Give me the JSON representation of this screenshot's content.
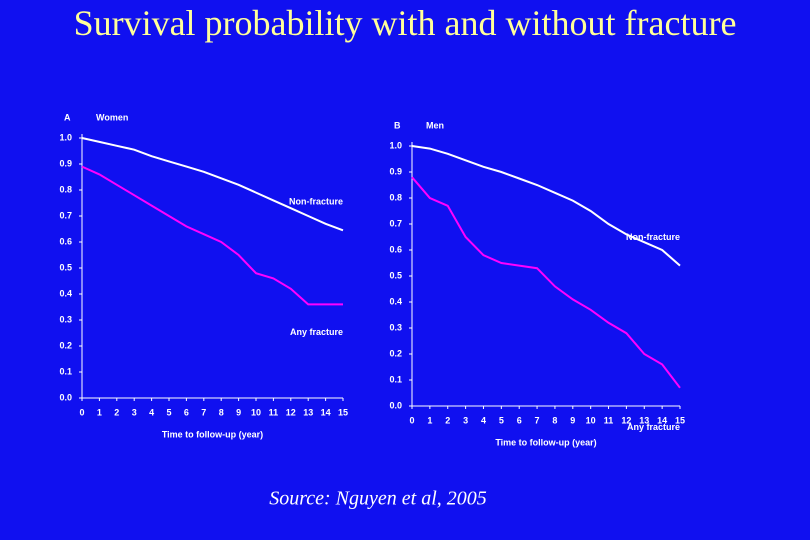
{
  "title": "Survival probability with and without fracture",
  "source": "Source: Nguyen et al, 2005",
  "chart_data": [
    {
      "type": "line",
      "panel": "A",
      "title": "Women",
      "xlabel": "Time to follow-up (year)",
      "x": [
        0,
        1,
        2,
        3,
        4,
        5,
        6,
        7,
        8,
        9,
        10,
        11,
        12,
        13,
        14,
        15
      ],
      "series": [
        {
          "name": "Non-fracture",
          "color": "#ffffff",
          "values": [
            1.0,
            0.985,
            0.97,
            0.955,
            0.93,
            0.91,
            0.89,
            0.87,
            0.845,
            0.82,
            0.79,
            0.76,
            0.73,
            0.7,
            0.67,
            0.645
          ]
        },
        {
          "name": "Any fracture",
          "color": "#ff00ff",
          "values": [
            0.89,
            0.86,
            0.82,
            0.78,
            0.74,
            0.7,
            0.66,
            0.63,
            0.6,
            0.55,
            0.48,
            0.46,
            0.42,
            0.36,
            0.36,
            0.36
          ]
        }
      ],
      "xlim": [
        0,
        15
      ],
      "xticks": [
        0,
        1,
        2,
        3,
        4,
        5,
        6,
        7,
        8,
        9,
        10,
        11,
        12,
        13,
        14,
        15
      ],
      "ylim": [
        0,
        1
      ],
      "yticks": [
        {
          "value": 0,
          "label": "0.0"
        },
        0.1,
        0.2,
        0.3,
        0.4,
        0.5,
        0.6,
        0.7,
        0.8,
        0.9,
        {
          "value": 1,
          "label": "1.0"
        }
      ]
    },
    {
      "type": "line",
      "panel": "B",
      "title": "Men",
      "xlabel": "Time to follow-up (year)",
      "x": [
        0,
        1,
        2,
        3,
        4,
        5,
        6,
        7,
        8,
        9,
        10,
        11,
        12,
        13,
        14,
        15
      ],
      "series": [
        {
          "name": "Non-fracture",
          "color": "#ffffff",
          "values": [
            1.0,
            0.99,
            0.97,
            0.945,
            0.92,
            0.9,
            0.875,
            0.85,
            0.82,
            0.79,
            0.75,
            0.7,
            0.66,
            0.63,
            0.6,
            0.54
          ]
        },
        {
          "name": "Any fracture",
          "color": "#ff00ff",
          "values": [
            0.88,
            0.8,
            0.77,
            0.65,
            0.58,
            0.55,
            0.54,
            0.53,
            0.46,
            0.41,
            0.37,
            0.32,
            0.28,
            0.2,
            0.16,
            0.07
          ]
        }
      ],
      "xlim": [
        0,
        15
      ],
      "xticks": [
        0,
        1,
        2,
        3,
        4,
        5,
        6,
        7,
        8,
        9,
        10,
        11,
        12,
        13,
        14,
        15
      ],
      "ylim": [
        0,
        1
      ],
      "yticks": [
        {
          "value": 0,
          "label": "0.0"
        },
        0.1,
        0.2,
        0.3,
        0.4,
        0.5,
        0.6,
        0.7,
        0.8,
        0.9,
        {
          "value": 1,
          "label": "1.0"
        }
      ]
    }
  ]
}
